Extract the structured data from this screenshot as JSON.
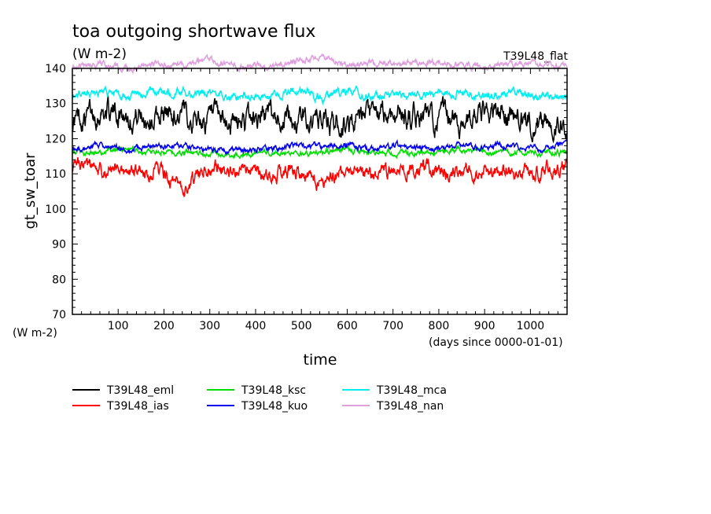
{
  "chart_data": {
    "type": "line",
    "title": "toa outgoing shortwave flux",
    "subtitle": "(W m-2)",
    "run_label": "T39L48_flat",
    "xlabel": "time",
    "x_unit_label": "(days since 0000-01-01)",
    "ylabel": "gt_sw_toar",
    "y_unit_label": "(W m-2)",
    "xlim": [
      0,
      1080
    ],
    "ylim": [
      70,
      140
    ],
    "x_ticks": [
      100,
      200,
      300,
      400,
      500,
      600,
      700,
      800,
      900,
      1000
    ],
    "x_tick_labels": [
      "100",
      "200",
      "300",
      "400",
      "500",
      "600",
      "700",
      "800",
      "900",
      "1000"
    ],
    "y_ticks": [
      70,
      80,
      90,
      100,
      110,
      120,
      130,
      140
    ],
    "y_tick_labels": [
      "70",
      "80",
      "90",
      "100",
      "110",
      "120",
      "130",
      "140"
    ],
    "grid": false,
    "legend_position": "bottom-left",
    "series": [
      {
        "name": "T39L48_eml",
        "color": "#000000",
        "mean": 126.5,
        "amplitude": 4.5,
        "x": [
          0,
          60,
          120,
          180,
          240,
          300,
          360,
          420,
          480,
          540,
          600,
          660,
          720,
          780,
          840,
          900,
          960,
          1020,
          1080
        ],
        "y": [
          125,
          128,
          127,
          126,
          127,
          125,
          124,
          127,
          126,
          125,
          124,
          126,
          127,
          126,
          125,
          127,
          127,
          124,
          125
        ]
      },
      {
        "name": "T39L48_ias",
        "color": "#ff0000",
        "mean": 110.5,
        "amplitude": 2.8,
        "x": [
          0,
          60,
          120,
          180,
          240,
          300,
          360,
          420,
          480,
          540,
          600,
          660,
          720,
          780,
          840,
          900,
          960,
          1020,
          1080
        ],
        "y": [
          112,
          111,
          110,
          111,
          106,
          112,
          111,
          109,
          111,
          107,
          111,
          110,
          112,
          111,
          110,
          111,
          110,
          111,
          112
        ]
      },
      {
        "name": "T39L48_ksc",
        "color": "#00dd00",
        "mean": 116.2,
        "amplitude": 1.0,
        "x": [
          0,
          60,
          120,
          180,
          240,
          300,
          360,
          420,
          480,
          540,
          600,
          660,
          720,
          780,
          840,
          900,
          960,
          1020,
          1080
        ],
        "y": [
          116,
          116,
          117,
          116,
          116,
          116,
          115,
          116,
          116,
          116,
          117,
          116,
          116,
          116,
          117,
          116,
          116,
          116,
          116
        ]
      },
      {
        "name": "T39L48_kuo",
        "color": "#0000ee",
        "mean": 117.5,
        "amplitude": 1.1,
        "x": [
          0,
          60,
          120,
          180,
          240,
          300,
          360,
          420,
          480,
          540,
          600,
          660,
          720,
          780,
          840,
          900,
          960,
          1020,
          1080
        ],
        "y": [
          117,
          118,
          117,
          118,
          118,
          117,
          117,
          117,
          118,
          118,
          118,
          117,
          118,
          117,
          118,
          118,
          118,
          117,
          119
        ]
      },
      {
        "name": "T39L48_mca",
        "color": "#00eeee",
        "mean": 132.5,
        "amplitude": 1.6,
        "x": [
          0,
          60,
          120,
          180,
          240,
          300,
          360,
          420,
          480,
          540,
          600,
          660,
          720,
          780,
          840,
          900,
          960,
          1020,
          1080
        ],
        "y": [
          133,
          133,
          132,
          133,
          133,
          133,
          132,
          132,
          134,
          132,
          133,
          132,
          132,
          133,
          133,
          132,
          133,
          132,
          132
        ]
      },
      {
        "name": "T39L48_nan",
        "color": "#dda0dd",
        "mean": 141.0,
        "amplitude": 1.2,
        "x": [
          0,
          60,
          120,
          180,
          240,
          300,
          360,
          420,
          480,
          540,
          600,
          660,
          720,
          780,
          840,
          900,
          960,
          1020,
          1080
        ],
        "y": [
          141,
          141,
          140,
          141,
          141,
          142,
          141,
          141,
          142,
          143,
          141,
          141,
          141,
          142,
          141,
          140,
          141,
          141,
          141
        ]
      }
    ]
  }
}
